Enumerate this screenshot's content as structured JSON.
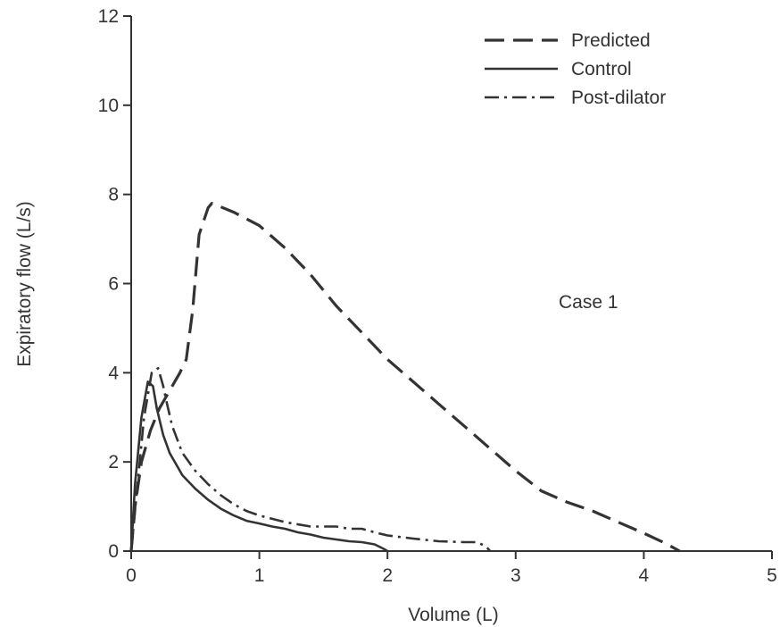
{
  "chart_data": {
    "type": "line",
    "xlabel": "Volume (L)",
    "ylabel": "Expiratory flow (L/s)",
    "xlim": [
      0,
      5
    ],
    "ylim": [
      0,
      12
    ],
    "xticks": [
      0,
      1,
      2,
      3,
      4,
      5
    ],
    "yticks": [
      0,
      2,
      4,
      6,
      8,
      10,
      12
    ],
    "xtick_labels": [
      "0",
      "1",
      "2",
      "3",
      "4",
      "5"
    ],
    "ytick_labels": [
      "0",
      "2",
      "4",
      "6",
      "8",
      "10",
      "12"
    ],
    "grid": false,
    "legend_position": "top-right",
    "annotation": "Case 1",
    "series": [
      {
        "name": "Predicted",
        "style": "dashed",
        "points": [
          [
            0.0,
            0.0
          ],
          [
            0.03,
            1.0
          ],
          [
            0.08,
            2.0
          ],
          [
            0.15,
            2.7
          ],
          [
            0.22,
            3.2
          ],
          [
            0.3,
            3.6
          ],
          [
            0.38,
            4.0
          ],
          [
            0.43,
            4.3
          ],
          [
            0.48,
            5.4
          ],
          [
            0.53,
            7.1
          ],
          [
            0.6,
            7.7
          ],
          [
            0.63,
            7.8
          ],
          [
            0.8,
            7.6
          ],
          [
            1.0,
            7.3
          ],
          [
            1.2,
            6.8
          ],
          [
            1.4,
            6.2
          ],
          [
            1.6,
            5.5
          ],
          [
            1.8,
            4.9
          ],
          [
            2.0,
            4.3
          ],
          [
            2.2,
            3.8
          ],
          [
            2.4,
            3.3
          ],
          [
            2.6,
            2.8
          ],
          [
            2.8,
            2.3
          ],
          [
            3.0,
            1.8
          ],
          [
            3.2,
            1.35
          ],
          [
            3.4,
            1.1
          ],
          [
            3.6,
            0.9
          ],
          [
            3.8,
            0.65
          ],
          [
            4.0,
            0.4
          ],
          [
            4.15,
            0.2
          ],
          [
            4.28,
            0.0
          ]
        ]
      },
      {
        "name": "Control",
        "style": "solid",
        "points": [
          [
            0.0,
            0.0
          ],
          [
            0.03,
            1.5
          ],
          [
            0.08,
            3.0
          ],
          [
            0.13,
            3.8
          ],
          [
            0.17,
            3.7
          ],
          [
            0.2,
            3.2
          ],
          [
            0.25,
            2.6
          ],
          [
            0.3,
            2.2
          ],
          [
            0.4,
            1.7
          ],
          [
            0.5,
            1.4
          ],
          [
            0.6,
            1.15
          ],
          [
            0.7,
            0.95
          ],
          [
            0.8,
            0.8
          ],
          [
            0.9,
            0.68
          ],
          [
            1.0,
            0.62
          ],
          [
            1.1,
            0.55
          ],
          [
            1.2,
            0.5
          ],
          [
            1.3,
            0.42
          ],
          [
            1.4,
            0.37
          ],
          [
            1.5,
            0.3
          ],
          [
            1.6,
            0.26
          ],
          [
            1.7,
            0.22
          ],
          [
            1.8,
            0.2
          ],
          [
            1.9,
            0.15
          ],
          [
            1.97,
            0.05
          ],
          [
            2.0,
            0.0
          ]
        ]
      },
      {
        "name": "Post-dilator",
        "style": "dashdot",
        "points": [
          [
            0.0,
            0.0
          ],
          [
            0.04,
            1.2
          ],
          [
            0.1,
            3.0
          ],
          [
            0.16,
            4.0
          ],
          [
            0.21,
            4.1
          ],
          [
            0.25,
            3.7
          ],
          [
            0.28,
            3.3
          ],
          [
            0.32,
            2.8
          ],
          [
            0.4,
            2.2
          ],
          [
            0.5,
            1.8
          ],
          [
            0.6,
            1.5
          ],
          [
            0.7,
            1.25
          ],
          [
            0.8,
            1.05
          ],
          [
            0.9,
            0.9
          ],
          [
            1.0,
            0.8
          ],
          [
            1.2,
            0.65
          ],
          [
            1.4,
            0.55
          ],
          [
            1.5,
            0.55
          ],
          [
            1.6,
            0.55
          ],
          [
            1.7,
            0.5
          ],
          [
            1.8,
            0.5
          ],
          [
            1.9,
            0.42
          ],
          [
            2.0,
            0.35
          ],
          [
            2.2,
            0.28
          ],
          [
            2.4,
            0.22
          ],
          [
            2.6,
            0.2
          ],
          [
            2.7,
            0.2
          ],
          [
            2.77,
            0.1
          ],
          [
            2.8,
            0.0
          ]
        ]
      }
    ]
  }
}
